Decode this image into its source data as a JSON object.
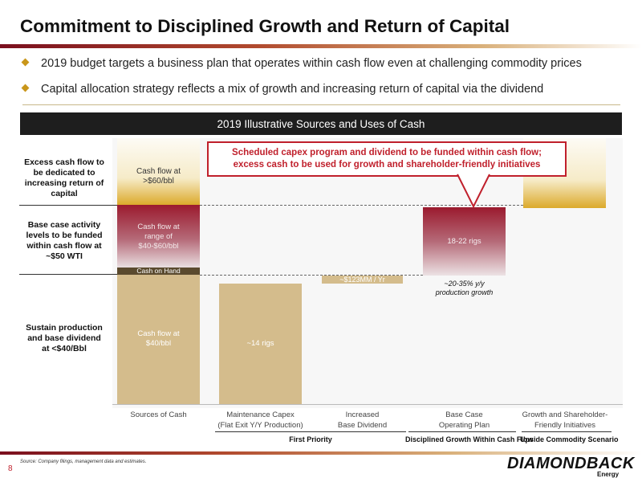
{
  "title": "Commitment to Disciplined Growth and Return of Capital",
  "bullets": [
    "2019 budget targets a business plan that operates within cash flow even at challenging commodity prices",
    "Capital allocation strategy reflects a mix of growth and increasing return of capital via the dividend"
  ],
  "banner": "2019 Illustrative Sources and Uses of Cash",
  "callout": [
    "Scheduled capex program and dividend to be funded within cash flow;",
    "excess cash to be used for growth and shareholder-friendly initiatives"
  ],
  "side_labels": {
    "excess": [
      "Excess cash flow to",
      "be dedicated to",
      "increasing return of",
      "capital"
    ],
    "base": [
      "Base case activity",
      "levels to be funded",
      "within cash flow at",
      "~$50 WTI"
    ],
    "sustain": [
      "Sustain production",
      "and base dividend",
      "at <$40/Bbl"
    ]
  },
  "chart_data": {
    "type": "bar",
    "categories": [
      [
        "Sources of Cash"
      ],
      [
        "Maintenance Capex",
        "(Flat Exit Y/Y Production)"
      ],
      [
        "Increased",
        "Base Dividend"
      ],
      [
        "Base Case",
        "Operating Plan"
      ],
      [
        "Growth and Shareholder-",
        "Friendly Initiatives"
      ]
    ],
    "segments": {
      "sources_40": [
        "Cash flow at",
        "$40/bbl"
      ],
      "cash_on_hand": "Cash on Hand",
      "sources_mid": [
        "Cash flow at",
        "range of",
        "$40-$60/bbl"
      ],
      "sources_top": [
        "Cash flow at",
        ">$60/bbl"
      ],
      "maintenance": "~14 rigs",
      "dividend": "~$123MM / Yr",
      "operating": "18-22 rigs",
      "growth_note": [
        "~20-35% y/y",
        "production growth"
      ]
    },
    "groups": [
      "First Priority",
      "Disciplined Growth Within Cash Flow",
      "Upside Commodity Scenario"
    ],
    "colors": {
      "tan": "#d4bc8c",
      "maroon": "#9b1a2e",
      "gold": "#dcaa2b",
      "dark_band": "#5a4a2e",
      "callout_red": "#c0202c"
    }
  },
  "footer": {
    "page": "8",
    "source": "Source: Company filings, management data and estimates.",
    "logo": "DIAMONDBACK",
    "logo_sub": "Energy"
  }
}
